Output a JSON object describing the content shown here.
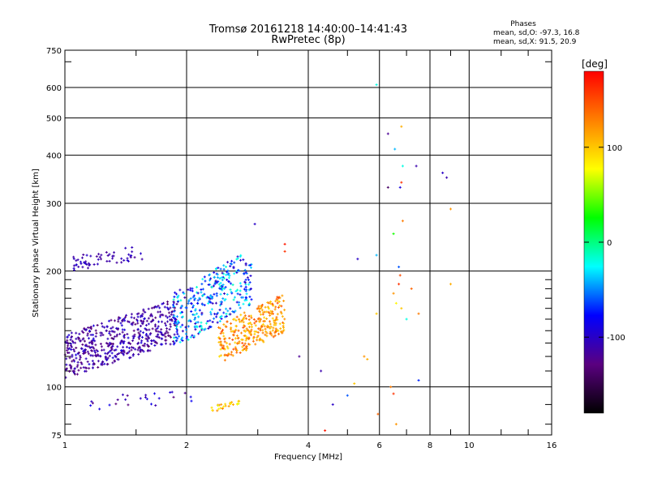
{
  "chart_data": {
    "type": "scatter",
    "title": "Tromsø 20161218 14:40:00–14:41:43",
    "subtitle": "RwPretec (8p)",
    "xlabel": "Frequency [MHz]",
    "ylabel": "Stationary phase Virtual Height [km]",
    "x_scale": "log",
    "y_scale": "log",
    "xlim": [
      1,
      16
    ],
    "ylim": [
      75,
      750
    ],
    "x_ticks": [
      1,
      2,
      4,
      6,
      8,
      10,
      16
    ],
    "y_ticks": [
      75,
      100,
      200,
      300,
      400,
      500,
      600,
      750
    ],
    "grid": true,
    "phase_stats": {
      "header": "Phases",
      "o_line": "mean, sd,O: -97.3, 16.8",
      "x_line": "mean, sd,X:  91.5, 20.9"
    },
    "colorbar": {
      "label": "[deg]",
      "range": [
        -180,
        180
      ],
      "ticks": [
        100,
        0,
        -100
      ],
      "colors": [
        "#000000",
        "#5a0080",
        "#0000ff",
        "#00ffff",
        "#00ff00",
        "#ffff00",
        "#ff8000",
        "#ff0000"
      ]
    },
    "clusters": [
      {
        "name": "",
        "x": [
          1.0,
          1.9
        ],
        "y": [
          105,
          170
        ],
        "phase": [
          -135,
          -90
        ],
        "count": 520
      },
      {
        "name": "",
        "x": [
          1.05,
          1.6
        ],
        "y": [
          200,
          235
        ],
        "phase": [
          -120,
          -95
        ],
        "count": 60
      },
      {
        "name": "",
        "x": [
          1.85,
          2.9
        ],
        "y": [
          125,
          230
        ],
        "phase": [
          -110,
          -10
        ],
        "count": 340
      },
      {
        "name": "",
        "x": [
          2.4,
          3.5
        ],
        "y": [
          115,
          175
        ],
        "phase": [
          90,
          150
        ],
        "count": 300
      },
      {
        "name": "",
        "x": [
          2.3,
          2.7
        ],
        "y": [
          86,
          92
        ],
        "phase": [
          70,
          130
        ],
        "count": 25
      },
      {
        "name": "",
        "x": [
          1.0,
          2.1
        ],
        "y": [
          85,
          100
        ],
        "phase": [
          -130,
          -80
        ],
        "count": 25
      }
    ],
    "points": [
      {
        "x": 5.9,
        "y": 610,
        "phase": -20
      },
      {
        "x": 6.3,
        "y": 455,
        "phase": -120
      },
      {
        "x": 6.8,
        "y": 475,
        "phase": 110
      },
      {
        "x": 6.55,
        "y": 415,
        "phase": -40
      },
      {
        "x": 6.85,
        "y": 375,
        "phase": -20
      },
      {
        "x": 7.4,
        "y": 375,
        "phase": -110
      },
      {
        "x": 8.6,
        "y": 360,
        "phase": -100
      },
      {
        "x": 8.8,
        "y": 350,
        "phase": -110
      },
      {
        "x": 6.3,
        "y": 330,
        "phase": -140
      },
      {
        "x": 6.8,
        "y": 340,
        "phase": 160
      },
      {
        "x": 6.75,
        "y": 330,
        "phase": -90
      },
      {
        "x": 9.0,
        "y": 290,
        "phase": 120
      },
      {
        "x": 6.85,
        "y": 270,
        "phase": 130
      },
      {
        "x": 6.5,
        "y": 250,
        "phase": 30
      },
      {
        "x": 6.7,
        "y": 205,
        "phase": -60
      },
      {
        "x": 6.75,
        "y": 195,
        "phase": 150
      },
      {
        "x": 6.7,
        "y": 185,
        "phase": 160
      },
      {
        "x": 7.2,
        "y": 180,
        "phase": 140
      },
      {
        "x": 6.5,
        "y": 175,
        "phase": 120
      },
      {
        "x": 6.6,
        "y": 165,
        "phase": 80
      },
      {
        "x": 6.8,
        "y": 160,
        "phase": 100
      },
      {
        "x": 7.5,
        "y": 155,
        "phase": 130
      },
      {
        "x": 7.0,
        "y": 150,
        "phase": -20
      },
      {
        "x": 5.9,
        "y": 155,
        "phase": 100
      },
      {
        "x": 9.0,
        "y": 185,
        "phase": 110
      },
      {
        "x": 5.3,
        "y": 215,
        "phase": -100
      },
      {
        "x": 5.9,
        "y": 220,
        "phase": -40
      },
      {
        "x": 3.5,
        "y": 235,
        "phase": 170
      },
      {
        "x": 3.5,
        "y": 225,
        "phase": 160
      },
      {
        "x": 2.95,
        "y": 265,
        "phase": -100
      },
      {
        "x": 3.8,
        "y": 120,
        "phase": -120
      },
      {
        "x": 4.3,
        "y": 110,
        "phase": -110
      },
      {
        "x": 5.5,
        "y": 120,
        "phase": 120
      },
      {
        "x": 5.6,
        "y": 118,
        "phase": 110
      },
      {
        "x": 5.2,
        "y": 102,
        "phase": 100
      },
      {
        "x": 5.0,
        "y": 95,
        "phase": -60
      },
      {
        "x": 4.6,
        "y": 90,
        "phase": -100
      },
      {
        "x": 4.4,
        "y": 77,
        "phase": 170
      },
      {
        "x": 5.95,
        "y": 85,
        "phase": 140
      },
      {
        "x": 6.5,
        "y": 96,
        "phase": 160
      },
      {
        "x": 6.6,
        "y": 80,
        "phase": 120
      },
      {
        "x": 7.5,
        "y": 104,
        "phase": -70
      },
      {
        "x": 6.4,
        "y": 100,
        "phase": 130
      }
    ]
  }
}
